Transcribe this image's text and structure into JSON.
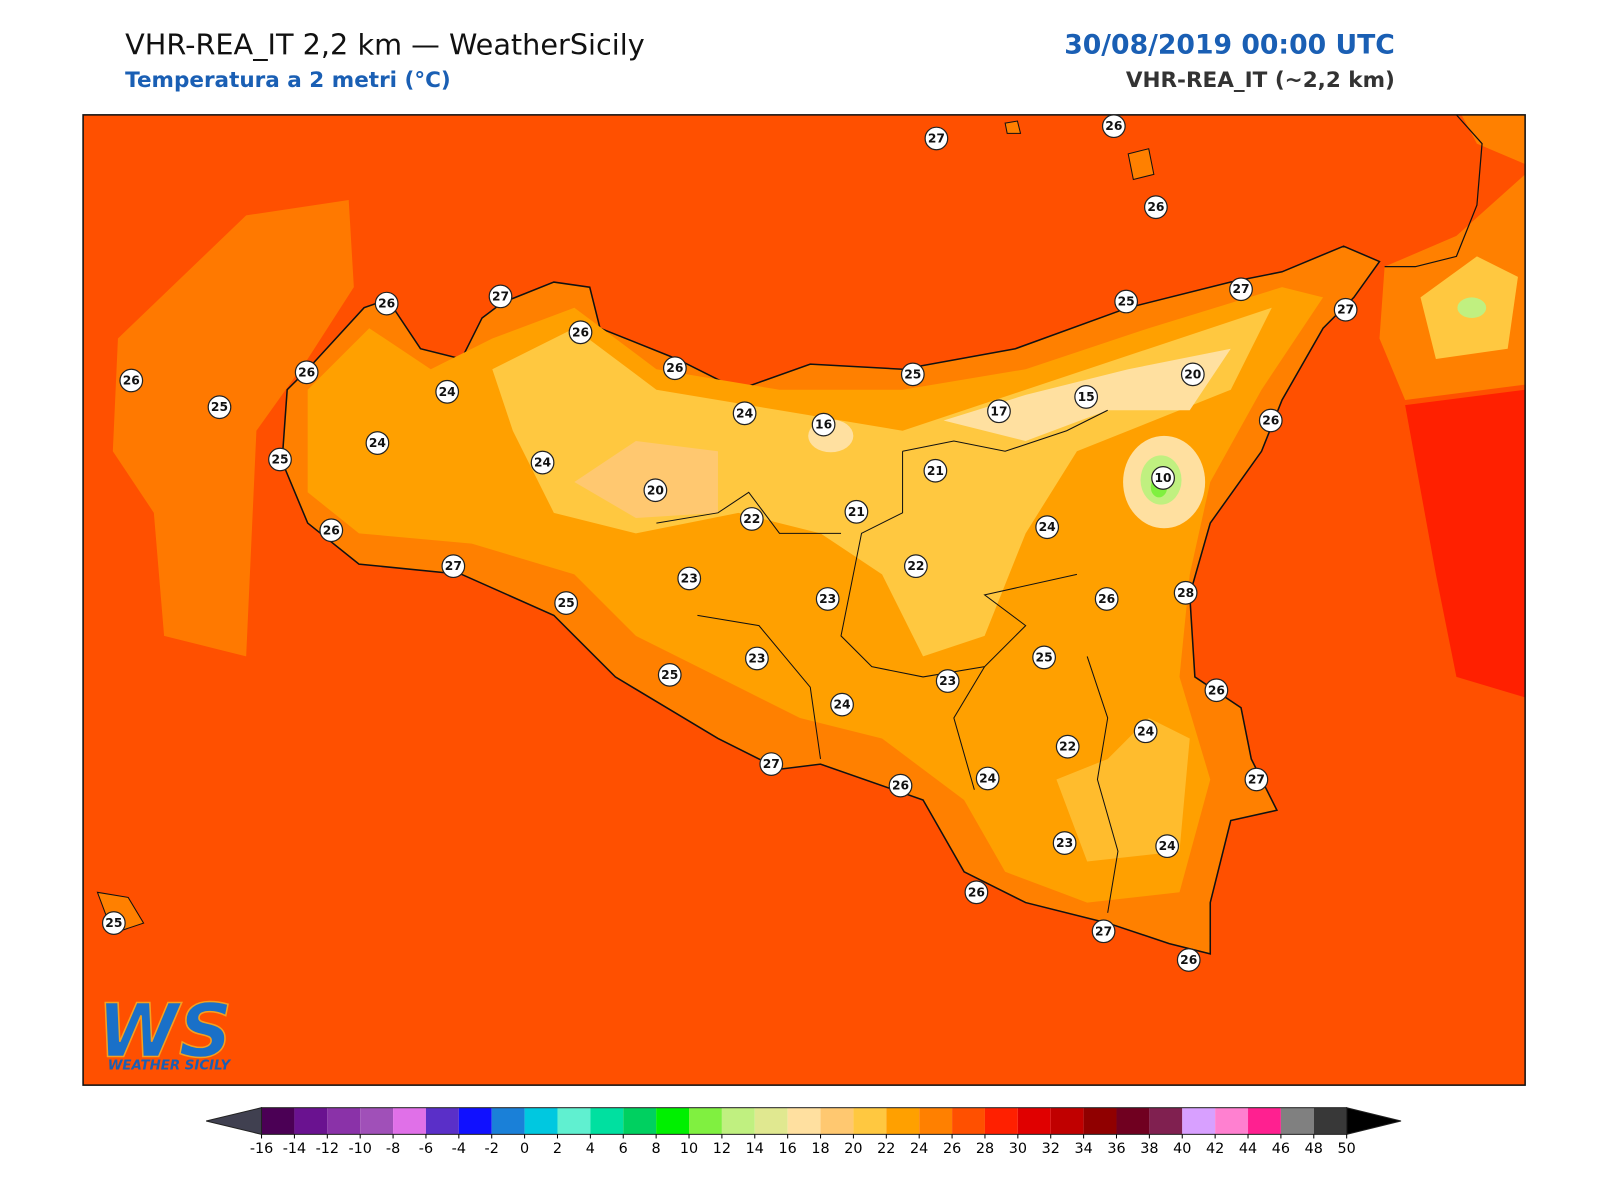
{
  "header": {
    "title": "VHR-REA_IT 2,2 km — WeatherSicily",
    "subtitle": "Temperatura a 2 metri (°C)",
    "datetime": "30/08/2019 00:00 UTC",
    "model": "VHR-REA_IT (~2,2 km)"
  },
  "logo": {
    "text": "WS",
    "caption": "WEATHER SICILY"
  },
  "stations": [
    27,
    26,
    26,
    26,
    27,
    26,
    26,
    25,
    25,
    27,
    27,
    20,
    26,
    26,
    25,
    24,
    24,
    25,
    24,
    24,
    16,
    17,
    15,
    26,
    10,
    21,
    20,
    22,
    21,
    26,
    27,
    25,
    23,
    23,
    22,
    24,
    26,
    28,
    25,
    23,
    25,
    23,
    24,
    26,
    24,
    22,
    27,
    26,
    24,
    27,
    23,
    24,
    26,
    25,
    27,
    26
  ],
  "colorbar": {
    "ticks": [
      -16,
      -14,
      -12,
      -10,
      -8,
      -6,
      -4,
      -2,
      0,
      2,
      4,
      6,
      8,
      10,
      12,
      14,
      16,
      18,
      20,
      22,
      24,
      26,
      28,
      30,
      32,
      34,
      36,
      38,
      40,
      42,
      44,
      46,
      48,
      50
    ],
    "colors": [
      "#4b0055",
      "#6a1290",
      "#8a32a8",
      "#a050b8",
      "#e070e8",
      "#5a2fc8",
      "#1010ff",
      "#1a80d8",
      "#00c8e0",
      "#60f0d0",
      "#00e0a0",
      "#00d060",
      "#00f000",
      "#80f040",
      "#c0f080",
      "#e0e890",
      "#ffe0a0",
      "#ffc870",
      "#ffc840",
      "#ffa000",
      "#ff8000",
      "#ff5000",
      "#ff2000",
      "#e00000",
      "#c00000",
      "#900000",
      "#700020",
      "#802050",
      "#d8a0ff",
      "#ff80d0",
      "#ff2090",
      "#808080",
      "#383838"
    ]
  }
}
